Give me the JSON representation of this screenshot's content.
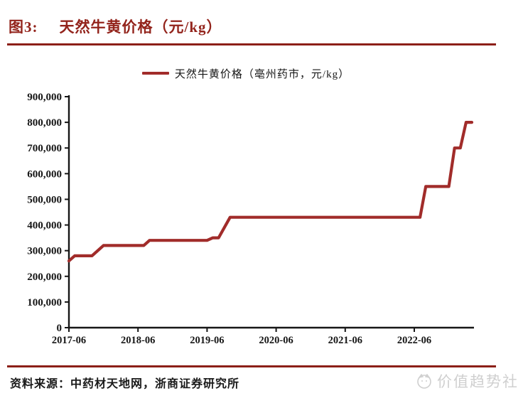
{
  "header": {
    "figure_label": "图3:",
    "title": "天然牛黄价格（元/kg）"
  },
  "footer": {
    "source": "资料来源：中药材天地网，浙商证券研究所",
    "watermark": "价值趋势社"
  },
  "colors": {
    "accent_red": "#8c1f18",
    "series_red": "#a12c2a",
    "axis_black": "#161616",
    "watermark_gray": "#cfcfcf"
  },
  "chart_data": {
    "type": "line",
    "title": "天然牛黄价格（元/kg）",
    "legend": [
      "天然牛黄价格（亳州药市，元/kg）"
    ],
    "legend_position": "top-center",
    "grid": false,
    "xlabel": "",
    "ylabel": "",
    "ylim": [
      0,
      900000
    ],
    "x_range": [
      "2017-06",
      "2023-04"
    ],
    "y_ticks": [
      0,
      100000,
      200000,
      300000,
      400000,
      500000,
      600000,
      700000,
      800000,
      900000
    ],
    "y_tick_labels": [
      "0",
      "100,000",
      "200,000",
      "300,000",
      "400,000",
      "500,000",
      "600,000",
      "700,000",
      "800,000",
      "900,000"
    ],
    "x_tick_labels": [
      "2017-06",
      "2018-06",
      "2019-06",
      "2020-06",
      "2021-06",
      "2022-06"
    ],
    "series": [
      {
        "name": "天然牛黄价格（亳州药市，元/kg）",
        "color": "#a12c2a",
        "points": [
          [
            "2017-06",
            260000
          ],
          [
            "2017-07",
            280000
          ],
          [
            "2017-10",
            280000
          ],
          [
            "2017-12",
            320000
          ],
          [
            "2018-07",
            320000
          ],
          [
            "2018-08",
            340000
          ],
          [
            "2019-06",
            340000
          ],
          [
            "2019-07",
            350000
          ],
          [
            "2019-08",
            350000
          ],
          [
            "2019-10",
            430000
          ],
          [
            "2022-07",
            430000
          ],
          [
            "2022-08",
            550000
          ],
          [
            "2022-12",
            550000
          ],
          [
            "2023-01",
            700000
          ],
          [
            "2023-02",
            700000
          ],
          [
            "2023-03",
            800000
          ],
          [
            "2023-04",
            800000
          ]
        ]
      }
    ]
  }
}
